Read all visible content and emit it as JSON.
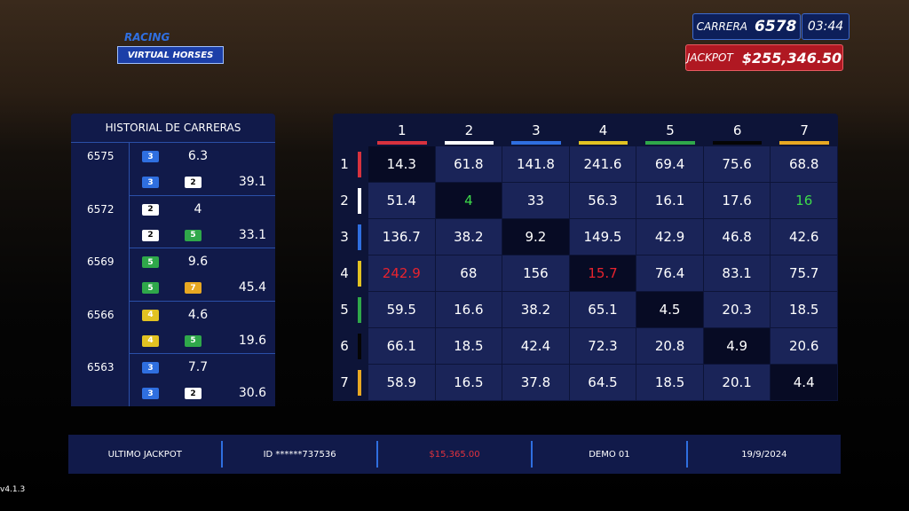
{
  "logo": {
    "top": "RACING",
    "bottom": "VIRTUAL HORSES"
  },
  "header": {
    "race_label": "CARRERA",
    "race_number": "6578",
    "timer": "03:44",
    "jackpot_label": "JACKPOT",
    "jackpot_value": "$255,346.50"
  },
  "history": {
    "title": "HISTORIAL DE CARRERAS",
    "races": [
      {
        "id": "6575",
        "rows": [
          {
            "badges": [
              "3"
            ],
            "value": "6.3"
          },
          {
            "badges": [
              "3",
              "2"
            ],
            "value": "39.1"
          }
        ]
      },
      {
        "id": "6572",
        "rows": [
          {
            "badges": [
              "2"
            ],
            "value": "4"
          },
          {
            "badges": [
              "2",
              "5"
            ],
            "value": "33.1"
          }
        ]
      },
      {
        "id": "6569",
        "rows": [
          {
            "badges": [
              "5"
            ],
            "value": "9.6"
          },
          {
            "badges": [
              "5",
              "7"
            ],
            "value": "45.4"
          }
        ]
      },
      {
        "id": "6566",
        "rows": [
          {
            "badges": [
              "4"
            ],
            "value": "4.6"
          },
          {
            "badges": [
              "4",
              "5"
            ],
            "value": "19.6"
          }
        ]
      },
      {
        "id": "6563",
        "rows": [
          {
            "badges": [
              "3"
            ],
            "value": "7.7"
          },
          {
            "badges": [
              "3",
              "2"
            ],
            "value": "30.6"
          }
        ]
      }
    ]
  },
  "grid": {
    "columns": [
      {
        "label": "1",
        "color": "#d8323e"
      },
      {
        "label": "2",
        "color": "#ffffff"
      },
      {
        "label": "3",
        "color": "#2f6fe0"
      },
      {
        "label": "4",
        "color": "#e2c222"
      },
      {
        "label": "5",
        "color": "#2fa84a"
      },
      {
        "label": "6",
        "color": "#050505"
      },
      {
        "label": "7",
        "color": "#e8a822"
      }
    ],
    "rows": [
      {
        "label": "1",
        "cells": [
          "14.3",
          "61.8",
          "141.8",
          "241.6",
          "69.4",
          "75.6",
          "68.8"
        ]
      },
      {
        "label": "2",
        "cells": [
          "51.4",
          {
            "text": "4",
            "color": "#3ddc4a"
          },
          "33",
          "56.3",
          "16.1",
          "17.6",
          {
            "text": "16",
            "color": "#3ddc4a"
          }
        ]
      },
      {
        "label": "3",
        "cells": [
          "136.7",
          "38.2",
          "9.2",
          "149.5",
          "42.9",
          "46.8",
          "42.6"
        ]
      },
      {
        "label": "4",
        "cells": [
          {
            "text": "242.9",
            "color": "#e8232e"
          },
          "68",
          "156",
          {
            "text": "15.7",
            "color": "#e8232e"
          },
          "76.4",
          "83.1",
          "75.7"
        ]
      },
      {
        "label": "5",
        "cells": [
          "59.5",
          "16.6",
          "38.2",
          "65.1",
          "4.5",
          "20.3",
          "18.5"
        ]
      },
      {
        "label": "6",
        "cells": [
          "66.1",
          "18.5",
          "42.4",
          "72.3",
          "20.8",
          "4.9",
          "20.6"
        ]
      },
      {
        "label": "7",
        "cells": [
          "58.9",
          "16.5",
          "37.8",
          "64.5",
          "18.5",
          "20.1",
          "4.4"
        ]
      }
    ]
  },
  "footer": {
    "items": [
      "ULTIMO JACKPOT",
      "ID ******737536",
      "$15,365.00",
      "DEMO 01",
      "19/9/2024"
    ],
    "highlight_color": "#e0323e"
  },
  "version": "v4.1.3"
}
